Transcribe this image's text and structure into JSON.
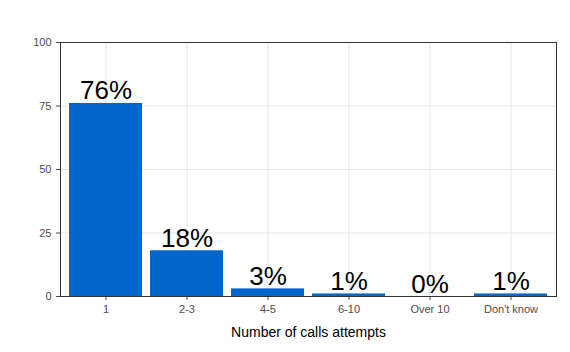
{
  "chart_data": {
    "type": "bar",
    "x_label": "Number of calls attempts",
    "categories": [
      "1",
      "2-3",
      "4-5",
      "6-10",
      "Over 10",
      "Don't know"
    ],
    "values": [
      76,
      18,
      3,
      1,
      0,
      1
    ],
    "value_labels": [
      "76%",
      "18%",
      "3%",
      "1%",
      "0%",
      "1%"
    ],
    "color": "#0066cc",
    "ylim": [
      0,
      100
    ],
    "yticks": [
      0,
      25,
      50,
      75,
      100
    ],
    "grid": true,
    "data_labels": true
  }
}
